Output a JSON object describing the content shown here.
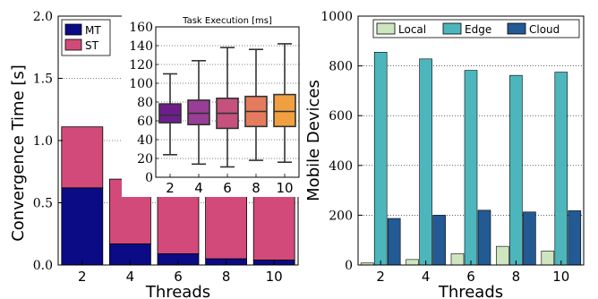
{
  "chart_data": [
    {
      "type": "bar",
      "stacked": true,
      "xlabel": "Threads",
      "ylabel": "Convergence Time [s]",
      "categories": [
        "2",
        "4",
        "6",
        "8",
        "10"
      ],
      "ylim": [
        0,
        2.0
      ],
      "yticks": [
        "0.0",
        "0.5",
        "1.0",
        "1.5",
        "2.0"
      ],
      "grid": "horizontal-dotted",
      "legend": "top-left",
      "series": [
        {
          "name": "MT",
          "color": "#0b0b85",
          "values": [
            0.62,
            0.17,
            0.09,
            0.05,
            0.04
          ]
        },
        {
          "name": "ST",
          "color": "#d14a7a",
          "values": [
            0.49,
            0.52,
            0.56,
            0.53,
            0.67
          ]
        }
      ],
      "inset": {
        "type": "box",
        "title": "Task Execution [ms]",
        "categories": [
          "2",
          "4",
          "6",
          "8",
          "10"
        ],
        "ylim": [
          0,
          160
        ],
        "yticks": [
          "0",
          "20",
          "40",
          "60",
          "80",
          "100",
          "120",
          "140",
          "160"
        ],
        "boxes": [
          {
            "category": "2",
            "color": "#6f1d8e",
            "min": 24,
            "q1": 58,
            "median": 66,
            "q3": 78,
            "max": 110
          },
          {
            "category": "4",
            "color": "#9a3d96",
            "min": 14,
            "q1": 56,
            "median": 68,
            "q3": 82,
            "max": 124
          },
          {
            "category": "6",
            "color": "#c4527d",
            "min": 11,
            "q1": 52,
            "median": 68,
            "q3": 84,
            "max": 138
          },
          {
            "category": "8",
            "color": "#e57b5d",
            "min": 18,
            "q1": 54,
            "median": 70,
            "q3": 86,
            "max": 136
          },
          {
            "category": "10",
            "color": "#f0a040",
            "min": 16,
            "q1": 54,
            "median": 70,
            "q3": 88,
            "max": 142
          }
        ]
      }
    },
    {
      "type": "bar",
      "stacked": false,
      "xlabel": "Threads",
      "ylabel": "Mobile Devices",
      "categories": [
        "2",
        "4",
        "6",
        "8",
        "10"
      ],
      "ylim": [
        0,
        1000
      ],
      "yticks": [
        "0",
        "200",
        "400",
        "600",
        "800",
        "1000"
      ],
      "grid": "horizontal-dotted",
      "legend": "top",
      "series": [
        {
          "name": "Local",
          "color": "#cde6bf",
          "values": [
            8,
            22,
            45,
            75,
            56
          ]
        },
        {
          "name": "Edge",
          "color": "#4db6bd",
          "values": [
            855,
            828,
            782,
            762,
            775
          ]
        },
        {
          "name": "Cloud",
          "color": "#235a93",
          "values": [
            187,
            200,
            220,
            213,
            218
          ]
        }
      ]
    }
  ]
}
